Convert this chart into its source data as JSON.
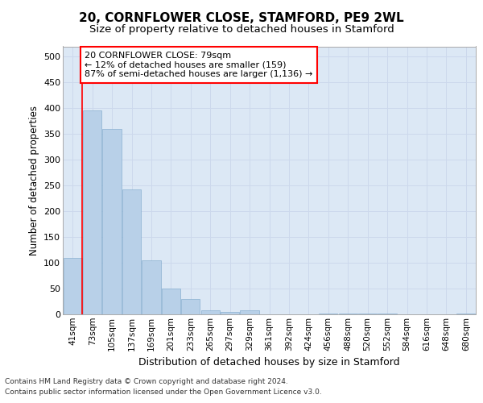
{
  "title1": "20, CORNFLOWER CLOSE, STAMFORD, PE9 2WL",
  "title2": "Size of property relative to detached houses in Stamford",
  "xlabel": "Distribution of detached houses by size in Stamford",
  "ylabel": "Number of detached properties",
  "categories": [
    "41sqm",
    "73sqm",
    "105sqm",
    "137sqm",
    "169sqm",
    "201sqm",
    "233sqm",
    "265sqm",
    "297sqm",
    "329sqm",
    "361sqm",
    "392sqm",
    "424sqm",
    "456sqm",
    "488sqm",
    "520sqm",
    "552sqm",
    "584sqm",
    "616sqm",
    "648sqm",
    "680sqm"
  ],
  "bar_values": [
    110,
    395,
    360,
    243,
    105,
    50,
    30,
    8,
    5,
    8,
    0,
    0,
    0,
    2,
    2,
    2,
    2,
    0,
    0,
    0,
    2
  ],
  "bar_color": "#b8d0e8",
  "bar_edge_color": "#8ab0d0",
  "grid_color": "#ccd8ec",
  "background_color": "#dce8f5",
  "annotation_line1": "20 CORNFLOWER CLOSE: 79sqm",
  "annotation_line2": "← 12% of detached houses are smaller (159)",
  "annotation_line3": "87% of semi-detached houses are larger (1,136) →",
  "red_line_index": 0.5,
  "ylim": [
    0,
    520
  ],
  "yticks": [
    0,
    50,
    100,
    150,
    200,
    250,
    300,
    350,
    400,
    450,
    500
  ],
  "footer1": "Contains HM Land Registry data © Crown copyright and database right 2024.",
  "footer2": "Contains public sector information licensed under the Open Government Licence v3.0."
}
